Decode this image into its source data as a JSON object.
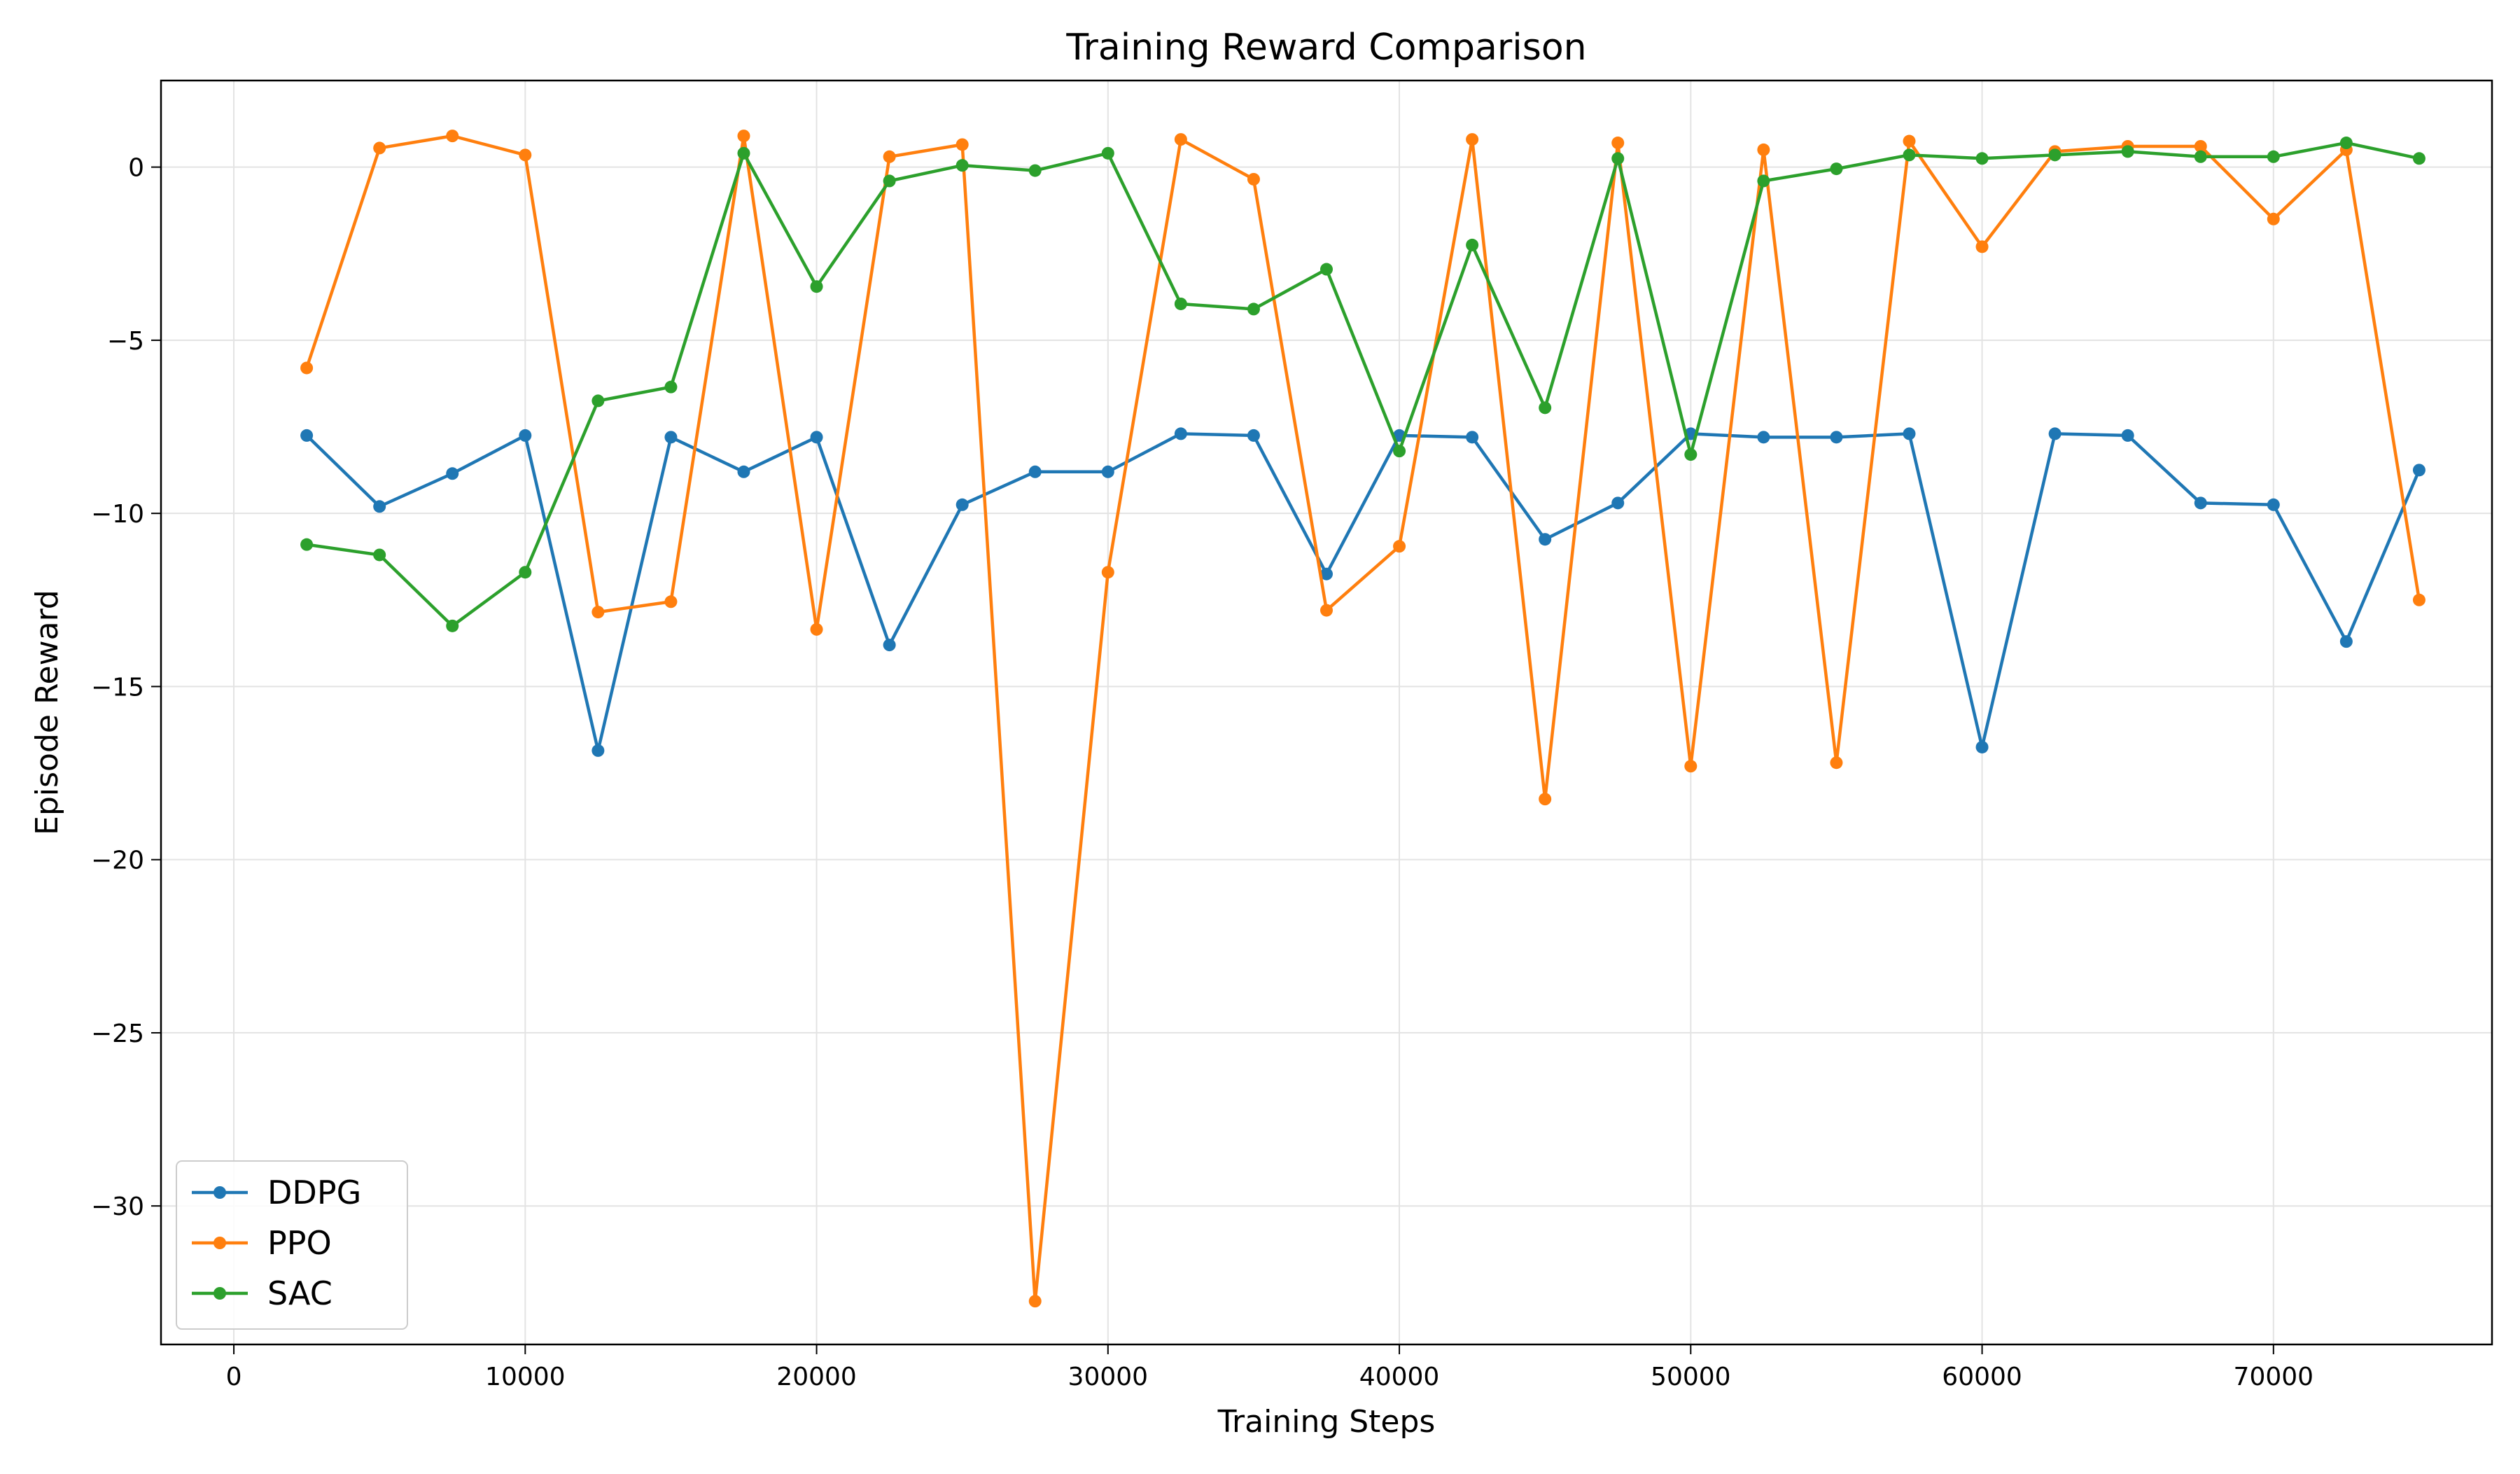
{
  "chart_data": {
    "type": "line",
    "title": "Training Reward Comparison",
    "xlabel": "Training Steps",
    "ylabel": "Episode Reward",
    "xlim": [
      -2500,
      77500
    ],
    "ylim": [
      -34,
      2.5
    ],
    "xticks": [
      0,
      10000,
      20000,
      30000,
      40000,
      50000,
      60000,
      70000
    ],
    "xtick_labels": [
      "0",
      "10000",
      "20000",
      "30000",
      "40000",
      "50000",
      "60000",
      "70000"
    ],
    "yticks": [
      0,
      -5,
      -10,
      -15,
      -20,
      -25,
      -30
    ],
    "ytick_labels": [
      "0",
      "−5",
      "−10",
      "−15",
      "−20",
      "−25",
      "−30"
    ],
    "grid": true,
    "legend_position": "lower-left",
    "x": [
      2500,
      5000,
      7500,
      10000,
      12500,
      15000,
      17500,
      20000,
      22500,
      25000,
      27500,
      30000,
      32500,
      35000,
      37500,
      40000,
      42500,
      45000,
      47500,
      50000,
      52500,
      55000,
      57500,
      60000,
      62500,
      65000,
      67500,
      70000,
      72500,
      75000
    ],
    "series": [
      {
        "name": "DDPG",
        "color": "#1f77b4",
        "values": [
          -7.75,
          -9.8,
          -8.85,
          -7.75,
          -16.85,
          -7.8,
          -8.8,
          -7.8,
          -13.8,
          -9.75,
          -8.8,
          -8.8,
          -7.7,
          -7.75,
          -11.75,
          -7.75,
          -7.8,
          -10.75,
          -9.7,
          -7.7,
          -7.8,
          -7.8,
          -7.7,
          -16.75,
          -7.7,
          -7.75,
          -9.7,
          -9.75,
          -13.7,
          -8.75
        ]
      },
      {
        "name": "PPO",
        "color": "#ff7f0e",
        "values": [
          -5.8,
          0.55,
          0.9,
          0.35,
          -12.85,
          -12.55,
          0.9,
          -13.35,
          0.3,
          0.65,
          -32.75,
          -11.7,
          0.8,
          -0.35,
          -12.8,
          -10.95,
          0.8,
          -18.25,
          0.7,
          -17.3,
          0.5,
          -17.2,
          0.75,
          -2.3,
          0.45,
          0.6,
          0.6,
          -1.5,
          0.5,
          -12.5
        ]
      },
      {
        "name": "SAC",
        "color": "#2ca02c",
        "values": [
          -10.9,
          -11.2,
          -13.25,
          -11.7,
          -6.75,
          -6.35,
          0.4,
          -3.45,
          -0.4,
          0.05,
          -0.1,
          0.4,
          -3.95,
          -4.1,
          -2.95,
          -8.2,
          -2.25,
          -6.95,
          0.25,
          -8.3,
          -0.4,
          -0.05,
          0.35,
          0.25,
          0.35,
          0.45,
          0.3,
          0.3,
          0.7,
          0.25
        ]
      }
    ]
  }
}
